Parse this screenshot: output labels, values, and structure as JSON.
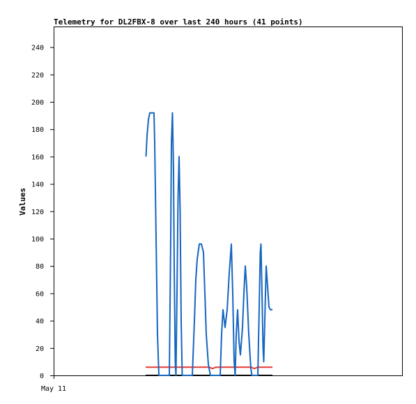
{
  "chart_data": {
    "type": "line",
    "title": "Telemetry for DL2FBX-8 over last 240 hours (41 points)",
    "ylabel": "Values",
    "xlabel": "",
    "ylim": [
      0,
      255
    ],
    "yticks": [
      0,
      20,
      40,
      60,
      80,
      100,
      120,
      140,
      160,
      180,
      200,
      220,
      240
    ],
    "xtick_labels": [
      "May 11"
    ],
    "grid": false,
    "colors": {
      "blue_series": "#1565c0",
      "red_series": "#e53935",
      "black_series": "#000000"
    },
    "series": [
      {
        "color": "#1565c0",
        "points": [
          [
            209.5,
            160
          ],
          [
            211,
            175
          ],
          [
            213,
            187
          ],
          [
            215,
            192
          ],
          [
            218,
            192
          ],
          [
            221,
            192
          ],
          [
            222,
            170
          ],
          [
            224,
            100
          ],
          [
            226,
            30
          ],
          [
            228,
            0
          ],
          [
            243,
            0
          ],
          [
            245,
            100
          ],
          [
            246,
            170
          ],
          [
            247.5,
            192
          ],
          [
            249,
            150
          ],
          [
            250,
            80
          ],
          [
            251.5,
            10
          ],
          [
            252.5,
            0
          ],
          [
            254,
            60
          ],
          [
            255.5,
            130
          ],
          [
            257,
            160
          ],
          [
            258.5,
            120
          ],
          [
            260,
            40
          ],
          [
            261.5,
            0
          ],
          [
            276,
            0
          ],
          [
            279,
            40
          ],
          [
            281,
            70
          ],
          [
            283,
            85
          ],
          [
            286,
            96
          ],
          [
            289,
            96
          ],
          [
            292,
            90
          ],
          [
            294,
            60
          ],
          [
            296,
            30
          ],
          [
            299,
            8
          ],
          [
            302,
            0
          ],
          [
            316,
            0
          ],
          [
            318,
            30
          ],
          [
            320,
            48
          ],
          [
            323,
            35
          ],
          [
            326,
            48
          ],
          [
            329,
            75
          ],
          [
            332,
            96
          ],
          [
            334,
            60
          ],
          [
            336,
            10
          ],
          [
            337.5,
            0
          ],
          [
            339,
            30
          ],
          [
            341,
            48
          ],
          [
            343,
            25
          ],
          [
            345,
            15
          ],
          [
            348,
            35
          ],
          [
            350,
            60
          ],
          [
            352,
            80
          ],
          [
            354,
            65
          ],
          [
            357,
            30
          ],
          [
            360,
            5
          ],
          [
            361.5,
            0
          ],
          [
            370,
            0
          ],
          [
            372,
            50
          ],
          [
            373.5,
            90
          ],
          [
            374.5,
            96
          ],
          [
            376,
            60
          ],
          [
            377.5,
            20
          ],
          [
            378.5,
            10
          ],
          [
            380,
            40
          ],
          [
            382,
            80
          ],
          [
            384,
            65
          ],
          [
            386,
            50
          ],
          [
            388,
            48
          ],
          [
            391,
            48
          ]
        ]
      },
      {
        "color": "#e53935",
        "points": [
          [
            209,
            6
          ],
          [
            300,
            6
          ],
          [
            305,
            5
          ],
          [
            310,
            6
          ],
          [
            360,
            6
          ],
          [
            365,
            5
          ],
          [
            370,
            6
          ],
          [
            391,
            6
          ]
        ]
      },
      {
        "color": "#000000",
        "points": [
          [
            209,
            0
          ],
          [
            391,
            0
          ]
        ]
      }
    ]
  }
}
